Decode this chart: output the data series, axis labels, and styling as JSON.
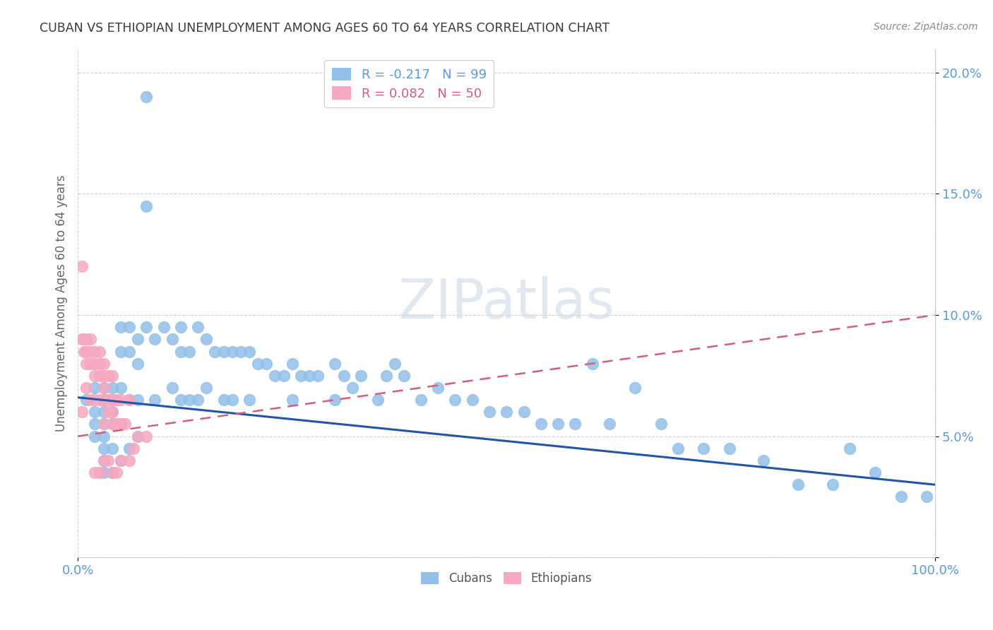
{
  "title": "CUBAN VS ETHIOPIAN UNEMPLOYMENT AMONG AGES 60 TO 64 YEARS CORRELATION CHART",
  "source": "Source: ZipAtlas.com",
  "ylabel": "Unemployment Among Ages 60 to 64 years",
  "xlim": [
    0.0,
    1.0
  ],
  "ylim": [
    0.0,
    0.21
  ],
  "y_ticks": [
    0.0,
    0.05,
    0.1,
    0.15,
    0.2
  ],
  "y_tick_labels": [
    "",
    "5.0%",
    "10.0%",
    "15.0%",
    "20.0%"
  ],
  "x_ticks": [
    0.0,
    1.0
  ],
  "x_tick_labels": [
    "0.0%",
    "100.0%"
  ],
  "cubans_R": -0.217,
  "cubans_N": 99,
  "ethiopians_R": 0.082,
  "ethiopians_N": 50,
  "legend_label_cubans": "R = -0.217   N = 99",
  "legend_label_ethiopians": "R = 0.082   N = 50",
  "watermark": "ZIPatlas",
  "scatter_color_cubans": "#92C0E8",
  "scatter_color_ethiopians": "#F5A8C0",
  "line_color_cubans": "#2055A8",
  "line_color_ethiopians": "#D0607A",
  "title_color": "#3A3A3A",
  "axis_label_color": "#5B9BD5",
  "ylabel_color": "#666666",
  "source_color": "#888888",
  "cu_line_start_y": 0.066,
  "cu_line_end_y": 0.03,
  "et_line_start_y": 0.05,
  "et_line_end_y": 0.1,
  "grid_color": "#CCCCCC",
  "cubans_x": [
    0.01,
    0.02,
    0.02,
    0.02,
    0.02,
    0.03,
    0.03,
    0.03,
    0.03,
    0.03,
    0.03,
    0.03,
    0.03,
    0.04,
    0.04,
    0.04,
    0.04,
    0.04,
    0.04,
    0.05,
    0.05,
    0.05,
    0.05,
    0.05,
    0.06,
    0.06,
    0.06,
    0.06,
    0.07,
    0.07,
    0.07,
    0.07,
    0.08,
    0.08,
    0.08,
    0.09,
    0.09,
    0.1,
    0.11,
    0.11,
    0.12,
    0.12,
    0.12,
    0.13,
    0.13,
    0.14,
    0.14,
    0.15,
    0.15,
    0.16,
    0.17,
    0.17,
    0.18,
    0.18,
    0.19,
    0.2,
    0.2,
    0.21,
    0.22,
    0.23,
    0.24,
    0.25,
    0.25,
    0.26,
    0.27,
    0.28,
    0.3,
    0.3,
    0.31,
    0.32,
    0.33,
    0.35,
    0.36,
    0.37,
    0.38,
    0.4,
    0.42,
    0.44,
    0.46,
    0.48,
    0.5,
    0.52,
    0.54,
    0.56,
    0.58,
    0.6,
    0.62,
    0.65,
    0.68,
    0.7,
    0.73,
    0.76,
    0.8,
    0.84,
    0.88,
    0.9,
    0.93,
    0.96,
    0.99
  ],
  "cubans_y": [
    0.065,
    0.07,
    0.06,
    0.055,
    0.05,
    0.07,
    0.065,
    0.06,
    0.055,
    0.05,
    0.045,
    0.04,
    0.035,
    0.07,
    0.065,
    0.06,
    0.055,
    0.045,
    0.035,
    0.095,
    0.085,
    0.07,
    0.055,
    0.04,
    0.095,
    0.085,
    0.065,
    0.045,
    0.09,
    0.08,
    0.065,
    0.05,
    0.19,
    0.145,
    0.095,
    0.09,
    0.065,
    0.095,
    0.09,
    0.07,
    0.095,
    0.085,
    0.065,
    0.085,
    0.065,
    0.095,
    0.065,
    0.09,
    0.07,
    0.085,
    0.085,
    0.065,
    0.085,
    0.065,
    0.085,
    0.085,
    0.065,
    0.08,
    0.08,
    0.075,
    0.075,
    0.08,
    0.065,
    0.075,
    0.075,
    0.075,
    0.08,
    0.065,
    0.075,
    0.07,
    0.075,
    0.065,
    0.075,
    0.08,
    0.075,
    0.065,
    0.07,
    0.065,
    0.065,
    0.06,
    0.06,
    0.06,
    0.055,
    0.055,
    0.055,
    0.08,
    0.055,
    0.07,
    0.055,
    0.045,
    0.045,
    0.045,
    0.04,
    0.03,
    0.03,
    0.045,
    0.035,
    0.025,
    0.025
  ],
  "ethiopians_x": [
    0.005,
    0.005,
    0.005,
    0.007,
    0.007,
    0.01,
    0.01,
    0.01,
    0.01,
    0.015,
    0.015,
    0.015,
    0.015,
    0.02,
    0.02,
    0.02,
    0.02,
    0.02,
    0.025,
    0.025,
    0.025,
    0.025,
    0.025,
    0.03,
    0.03,
    0.03,
    0.03,
    0.03,
    0.03,
    0.035,
    0.035,
    0.035,
    0.035,
    0.04,
    0.04,
    0.04,
    0.04,
    0.04,
    0.045,
    0.045,
    0.045,
    0.05,
    0.05,
    0.05,
    0.055,
    0.06,
    0.06,
    0.065,
    0.07,
    0.08
  ],
  "ethiopians_y": [
    0.12,
    0.09,
    0.06,
    0.09,
    0.085,
    0.09,
    0.085,
    0.08,
    0.07,
    0.09,
    0.085,
    0.08,
    0.065,
    0.085,
    0.08,
    0.075,
    0.065,
    0.035,
    0.085,
    0.08,
    0.075,
    0.065,
    0.035,
    0.08,
    0.075,
    0.07,
    0.065,
    0.055,
    0.04,
    0.075,
    0.065,
    0.06,
    0.04,
    0.075,
    0.065,
    0.06,
    0.055,
    0.035,
    0.065,
    0.055,
    0.035,
    0.065,
    0.055,
    0.04,
    0.055,
    0.065,
    0.04,
    0.045,
    0.05,
    0.05
  ]
}
